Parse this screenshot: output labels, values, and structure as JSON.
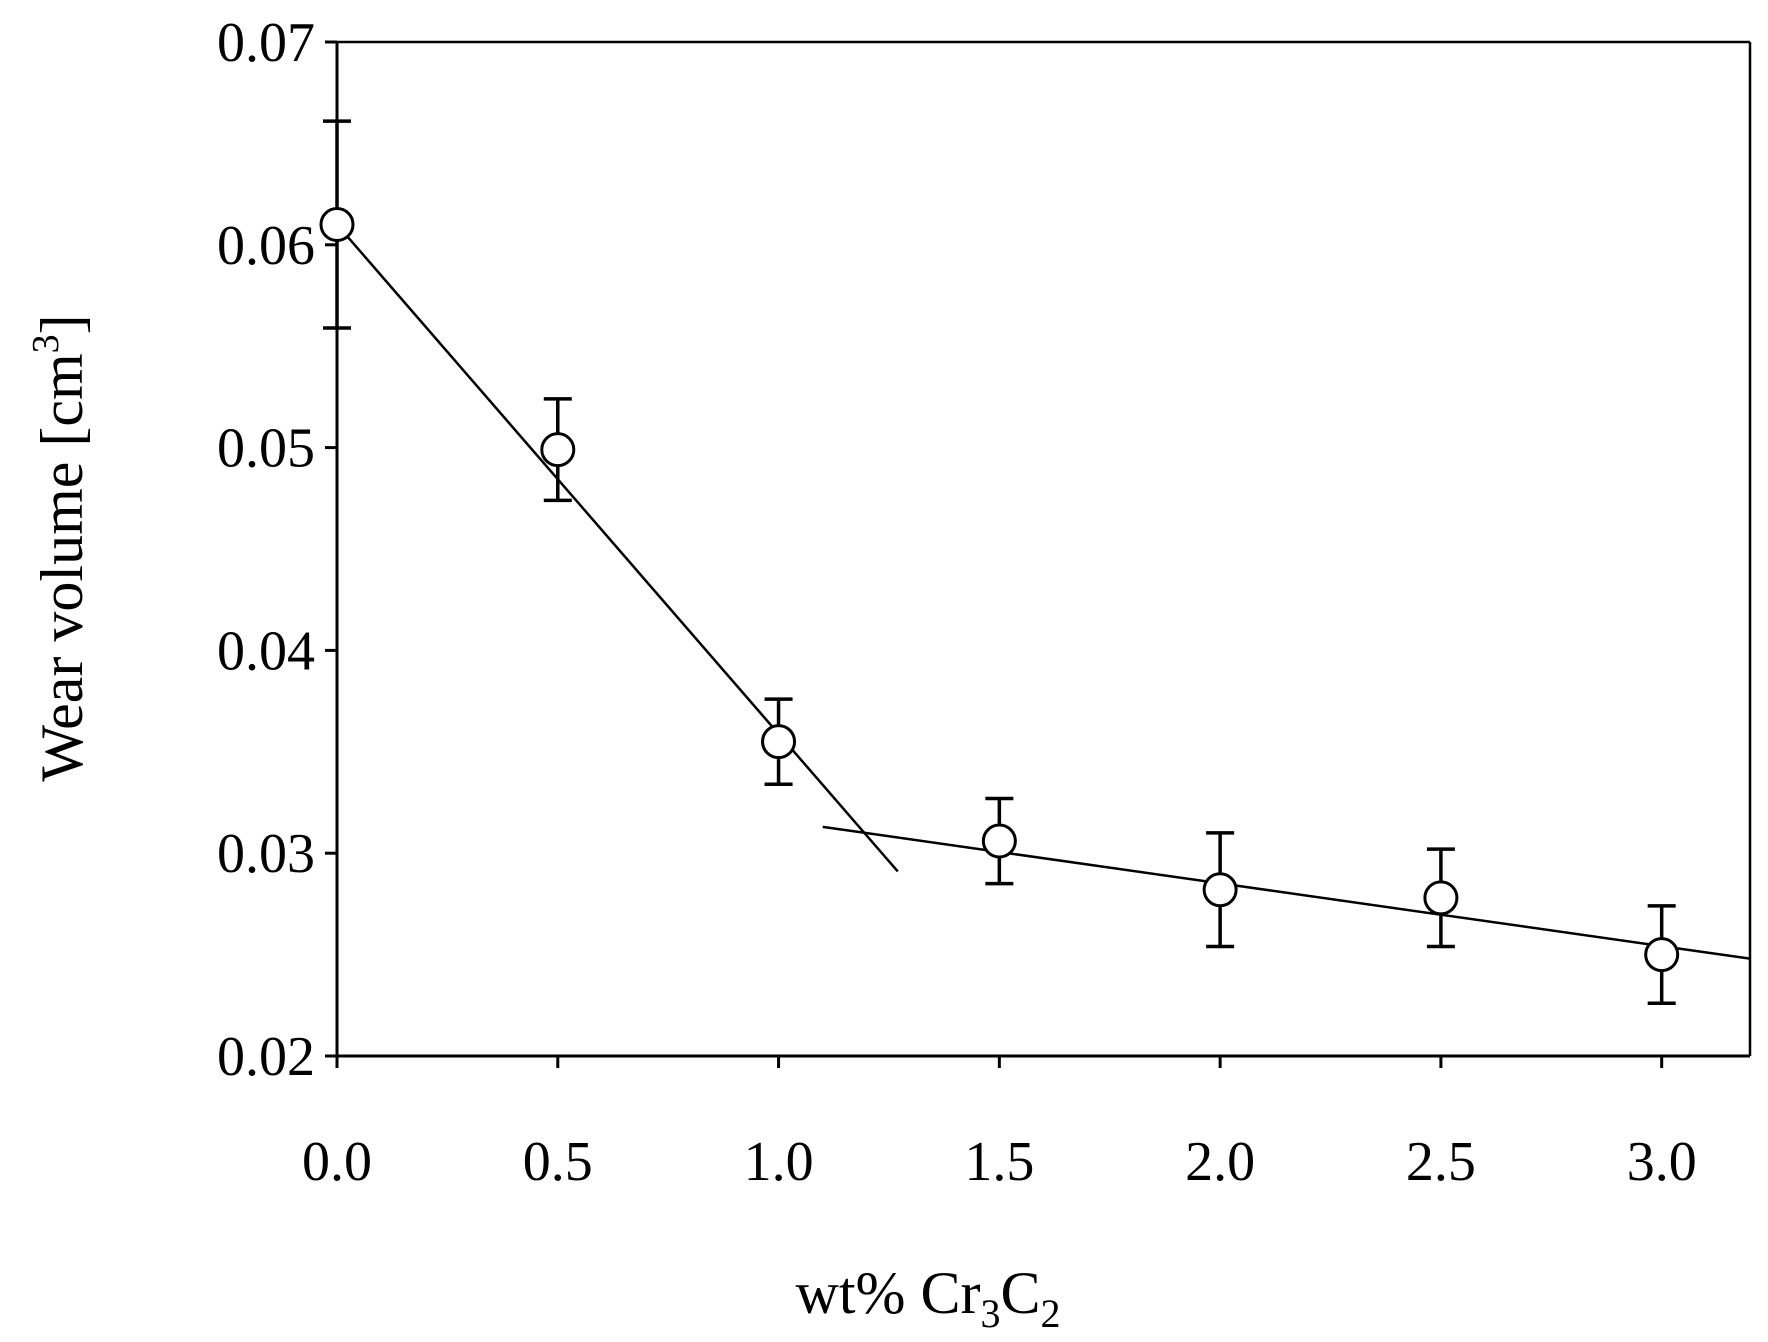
{
  "chart_data": {
    "type": "scatter",
    "title": "",
    "xlabel": "wt%  Cr₃C₂",
    "xlabel_parts": {
      "main": "wt%  Cr",
      "sub1": "3",
      "mid": "C",
      "sub2": "2"
    },
    "ylabel": "Wear volume [cm³]",
    "ylabel_parts": {
      "main": "Wear volume [cm",
      "sup": "3",
      "end": "]"
    },
    "xlim": [
      0.0,
      3.2
    ],
    "ylim": [
      0.02,
      0.07
    ],
    "x_ticks": [
      0.0,
      0.5,
      1.0,
      1.5,
      2.0,
      2.5,
      3.0
    ],
    "x_tick_labels": [
      "0.0",
      "0.5",
      "1.0",
      "1.5",
      "2.0",
      "2.5",
      "3.0"
    ],
    "y_ticks": [
      0.02,
      0.03,
      0.04,
      0.05,
      0.06,
      0.07
    ],
    "y_tick_labels": [
      "0.02",
      "0.03",
      "0.04",
      "0.05",
      "0.06",
      "0.07"
    ],
    "grid": false,
    "series": [
      {
        "name": "Wear volume",
        "marker": "open-circle",
        "x": [
          0.0,
          0.5,
          1.0,
          1.5,
          2.0,
          2.5,
          3.0
        ],
        "y": [
          0.061,
          0.0499,
          0.0355,
          0.0306,
          0.0282,
          0.0278,
          0.025
        ],
        "err_low": [
          0.0051,
          0.0025,
          0.0021,
          0.0021,
          0.0028,
          0.0024,
          0.0024
        ],
        "err_high": [
          0.0051,
          0.0025,
          0.0021,
          0.0021,
          0.0028,
          0.0024,
          0.0024
        ]
      }
    ],
    "fit_lines": [
      {
        "name": "trend-steep",
        "x": [
          0.0,
          1.27
        ],
        "y": [
          0.061,
          0.0291
        ]
      },
      {
        "name": "trend-shallow",
        "x": [
          1.1,
          3.2
        ],
        "y": [
          0.0313,
          0.0248
        ]
      }
    ]
  }
}
